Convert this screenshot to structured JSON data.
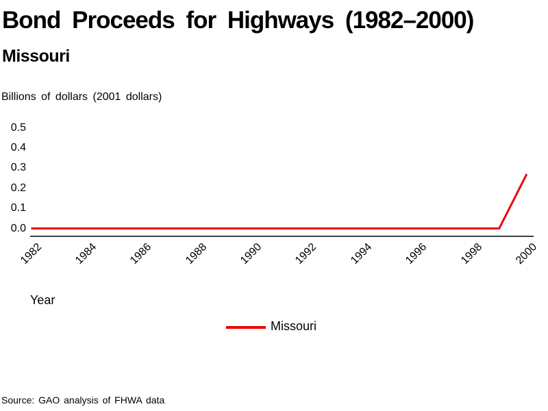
{
  "header": {
    "title": "Bond Proceeds for Highways (1982–2000)",
    "subtitle": "Missouri"
  },
  "axis": {
    "y_unit_label": "Billions of dollars (2001 dollars)",
    "x_title": "Year"
  },
  "legend": {
    "items": [
      {
        "label": "Missouri",
        "color": "#ee0000"
      }
    ]
  },
  "footer": {
    "source": "Source: GAO analysis of FHWA data"
  },
  "colors": {
    "series": "#ee0000",
    "axis": "#000000",
    "text": "#000000",
    "background": "#ffffff"
  },
  "chart_data": {
    "type": "line",
    "title": "Bond Proceeds for Highways (1982–2000)",
    "subtitle": "Missouri",
    "xlabel": "Year",
    "ylabel": "Billions of dollars (2001 dollars)",
    "x": [
      1982,
      1983,
      1984,
      1985,
      1986,
      1987,
      1988,
      1989,
      1990,
      1991,
      1992,
      1993,
      1994,
      1995,
      1996,
      1997,
      1998,
      1999,
      2000
    ],
    "series": [
      {
        "name": "Missouri",
        "color": "#ee0000",
        "values": [
          0,
          0,
          0,
          0,
          0,
          0,
          0,
          0,
          0,
          0,
          0,
          0,
          0,
          0,
          0,
          0,
          0,
          0,
          0.27
        ]
      }
    ],
    "x_ticks": [
      1982,
      1984,
      1986,
      1988,
      1990,
      1992,
      1994,
      1996,
      1998,
      2000
    ],
    "y_ticks": [
      0.0,
      0.1,
      0.2,
      0.3,
      0.4,
      0.5
    ],
    "xlim": [
      1982,
      2000
    ],
    "ylim": [
      0,
      0.5
    ],
    "grid": false,
    "legend_position": "bottom-center",
    "source": "Source: GAO analysis of FHWA data"
  }
}
